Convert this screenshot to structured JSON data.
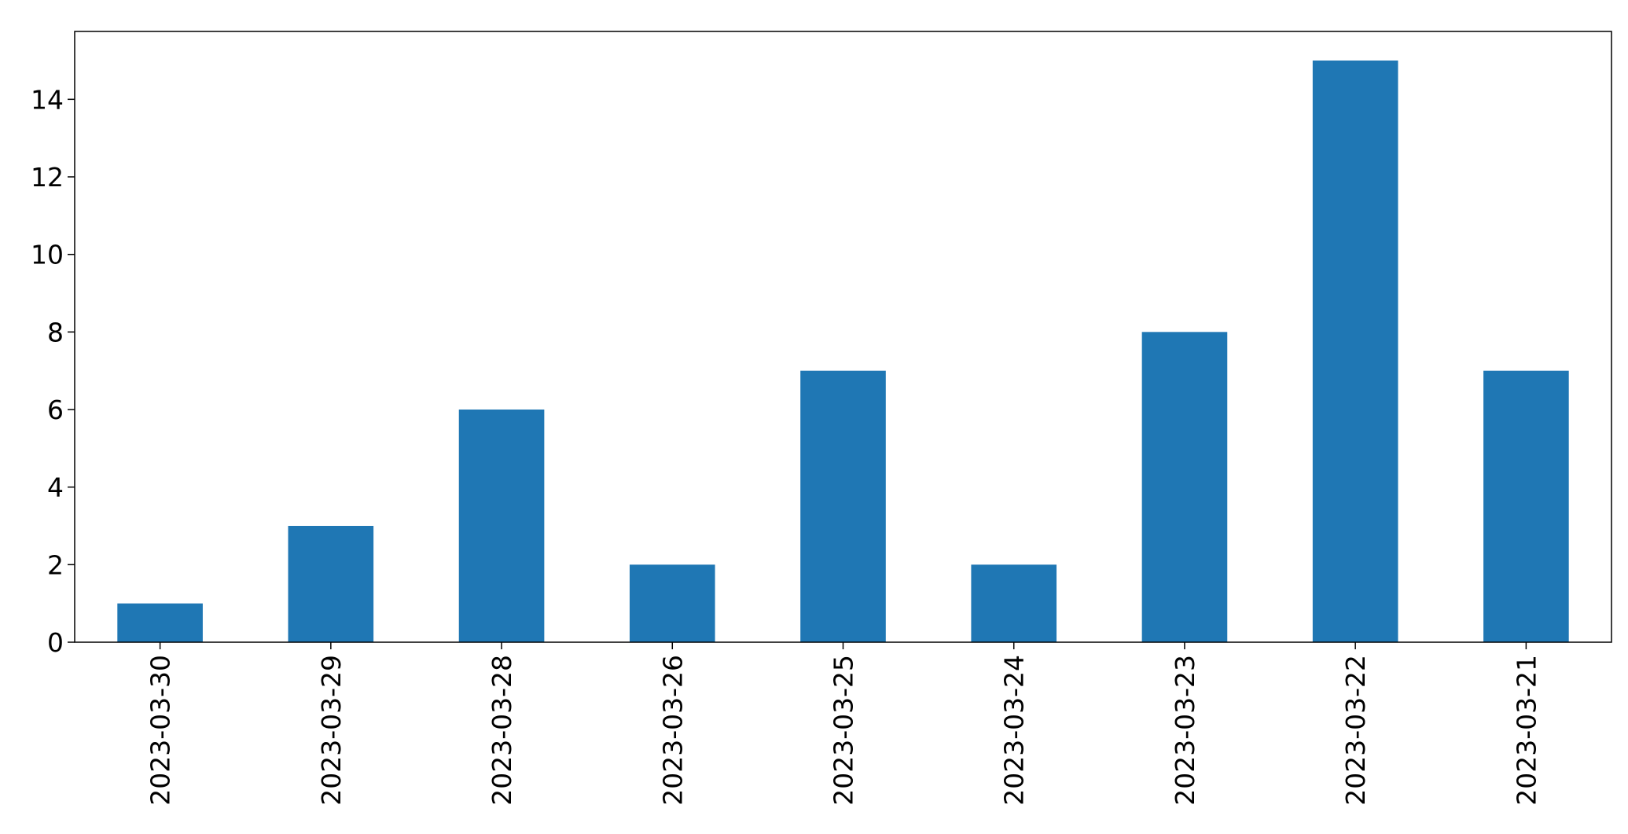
{
  "chart_data": {
    "type": "bar",
    "categories": [
      "2023-03-30",
      "2023-03-29",
      "2023-03-28",
      "2023-03-26",
      "2023-03-25",
      "2023-03-24",
      "2023-03-23",
      "2023-03-22",
      "2023-03-21"
    ],
    "values": [
      1,
      3,
      6,
      2,
      7,
      2,
      8,
      15,
      7
    ],
    "title": "",
    "xlabel": "",
    "ylabel": "",
    "ylim": [
      0,
      15.75
    ],
    "yticks": [
      0,
      2,
      4,
      6,
      8,
      10,
      12,
      14
    ],
    "grid": false,
    "legend": "none",
    "bar_color": "#1f77b4",
    "x_tick_rotation": "vertical"
  }
}
